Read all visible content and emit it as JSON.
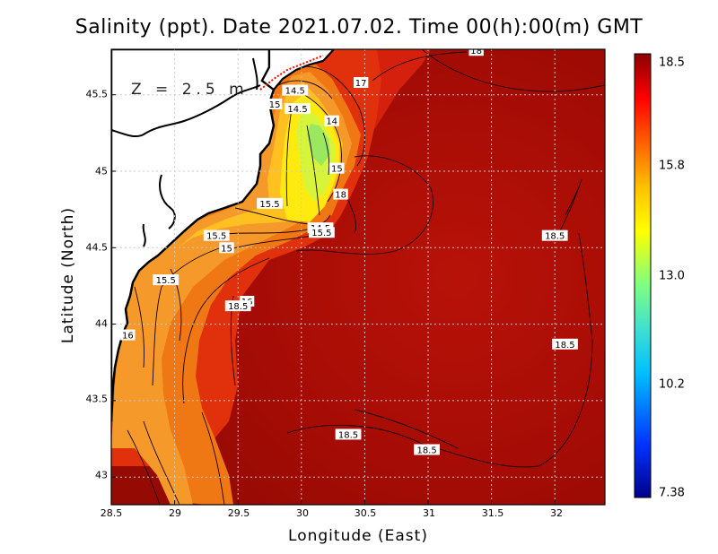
{
  "title": "Salinity (ppt). Date 2021.07.02. Time 00(h):00(m) GMT",
  "xlabel": "Longitude (East)",
  "ylabel": "Latitude (North)",
  "depth_label": "Z = 2.5 m",
  "x_ticks": [
    "28.5",
    "29",
    "29.5",
    "30",
    "30.5",
    "31",
    "31.5",
    "32"
  ],
  "y_ticks": [
    "45.5",
    "45",
    "44.5",
    "44",
    "43.5",
    "43"
  ],
  "colorbar": {
    "max": "18.5",
    "mid_high": "15.8",
    "mid": "13.0",
    "mid_low": "10.2",
    "min": "7.38",
    "colors": [
      "#00008b",
      "#0033ff",
      "#00bfff",
      "#40e0d0",
      "#7fff7f",
      "#ffff00",
      "#ffc000",
      "#ff6000",
      "#ff0000",
      "#8b0000"
    ]
  },
  "contour_labels": [
    {
      "text": "18",
      "lon": 31.38,
      "lat": 45.79
    },
    {
      "text": "17",
      "lon": 30.47,
      "lat": 45.58
    },
    {
      "text": "14.5",
      "lon": 29.95,
      "lat": 45.53
    },
    {
      "text": "15",
      "lon": 29.79,
      "lat": 45.44
    },
    {
      "text": "14.5",
      "lon": 29.97,
      "lat": 45.41
    },
    {
      "text": "14",
      "lon": 30.24,
      "lat": 45.33
    },
    {
      "text": "15",
      "lon": 30.28,
      "lat": 45.02
    },
    {
      "text": "18",
      "lon": 30.31,
      "lat": 44.85
    },
    {
      "text": "15.5",
      "lon": 29.75,
      "lat": 44.79
    },
    {
      "text": "14.5",
      "lon": 30.15,
      "lat": 44.63
    },
    {
      "text": "15.5",
      "lon": 30.16,
      "lat": 44.6
    },
    {
      "text": "15.5",
      "lon": 29.33,
      "lat": 44.58
    },
    {
      "text": "15",
      "lon": 29.41,
      "lat": 44.5
    },
    {
      "text": "18.5",
      "lon": 32.0,
      "lat": 44.58
    },
    {
      "text": "15.5",
      "lon": 28.93,
      "lat": 44.29
    },
    {
      "text": "16",
      "lon": 29.57,
      "lat": 44.15
    },
    {
      "text": "18.5",
      "lon": 29.5,
      "lat": 44.12
    },
    {
      "text": "16",
      "lon": 28.63,
      "lat": 43.93
    },
    {
      "text": "18.5",
      "lon": 32.08,
      "lat": 43.87
    },
    {
      "text": "18.5",
      "lon": 30.37,
      "lat": 43.28
    },
    {
      "text": "18.5",
      "lon": 30.99,
      "lat": 43.18
    }
  ]
}
